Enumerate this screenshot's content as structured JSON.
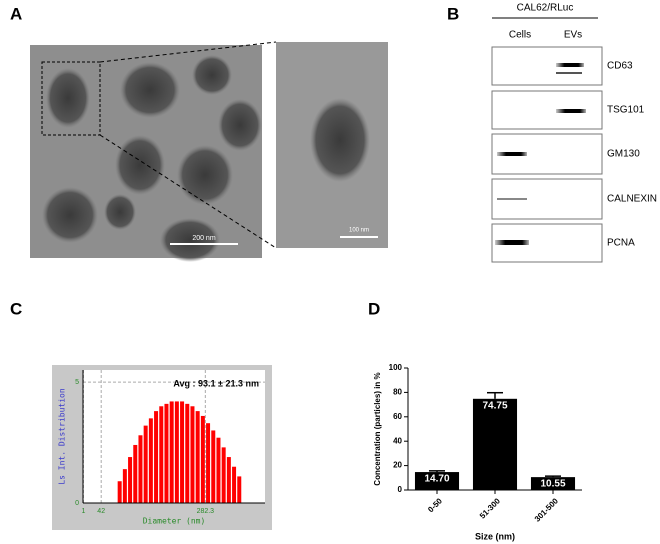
{
  "panels": {
    "a": {
      "label": "A",
      "scale_bar": "200 nm",
      "zoom_scale_bar": "100 nm"
    },
    "b": {
      "label": "B",
      "header": "CAL62/RLuc",
      "columns": [
        "Cells",
        "EVs"
      ],
      "rows": [
        "CD63",
        "TSG101",
        "GM130",
        "CALNEXIN",
        "PCNA"
      ]
    },
    "c": {
      "label": "C"
    },
    "d": {
      "label": "D"
    }
  },
  "chart_data": [
    {
      "type": "histogram",
      "annotation": "Avg : 93.1 ± 21.3 nm",
      "x_label": "Diameter (nm)",
      "y_label": "Ls Int. Distribution",
      "bins": [
        80,
        92,
        104,
        116,
        128,
        140,
        152,
        164,
        176,
        188,
        200,
        212,
        224,
        236,
        248,
        260,
        272,
        284,
        296,
        308,
        320,
        332,
        344,
        356,
        368
      ],
      "values": [
        0.9,
        1.4,
        1.9,
        2.4,
        2.8,
        3.2,
        3.5,
        3.8,
        4.0,
        4.1,
        4.2,
        4.2,
        4.2,
        4.1,
        4.0,
        3.8,
        3.6,
        3.3,
        3.0,
        2.7,
        2.3,
        1.9,
        1.5,
        1.1
      ],
      "color": "#ff0000",
      "xlim": [
        0,
        420
      ],
      "xticks": [
        1,
        42,
        282.3
      ],
      "ylim": [
        0,
        5.5
      ],
      "yticks": [
        0,
        5
      ],
      "grid": true
    },
    {
      "type": "bar",
      "x_label": "Size (nm)",
      "y_label": "Concentration (particles) in %",
      "categories": [
        "0-50",
        "51-300",
        "301-500"
      ],
      "values": [
        14.7,
        74.75,
        10.55
      ],
      "value_labels": [
        "14.70",
        "74.75",
        "10.55"
      ],
      "errors": [
        1,
        5,
        0.8
      ],
      "color": "#000000",
      "ylim": [
        0,
        100
      ],
      "yticks": [
        0,
        20,
        40,
        60,
        80,
        100
      ]
    }
  ]
}
